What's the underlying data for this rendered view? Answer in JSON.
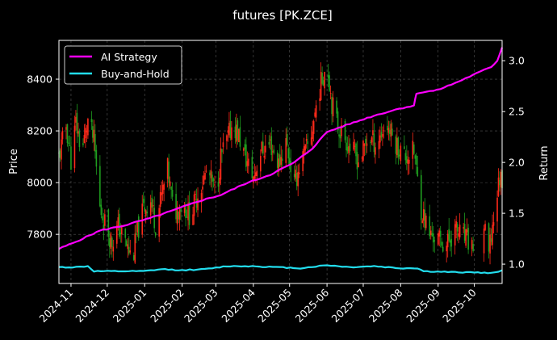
{
  "chart_data": {
    "type": "line",
    "title": "futures [PK.ZCE]",
    "xlabel": "",
    "ylabel_left": "Price",
    "ylabel_right": "Return",
    "x_start": "2024-10-22",
    "x_end": "2025-10-24",
    "x_ticks": [
      "2024-11",
      "2024-12",
      "2025-01",
      "2025-02",
      "2025-03",
      "2025-04",
      "2025-05",
      "2025-06",
      "2025-07",
      "2025-08",
      "2025-09",
      "2025-10"
    ],
    "ylim_left": [
      7610,
      8550
    ],
    "yticks_left": [
      7800,
      8000,
      8200,
      8400
    ],
    "ylim_right": [
      0.81,
      3.2
    ],
    "yticks_right": [
      "1.0",
      "1.5",
      "2.0",
      "2.5",
      "3.0"
    ],
    "grid": true,
    "legend_position": "top-left",
    "colors": {
      "background": "#000000",
      "up_candle": "#ff2a1a",
      "down_candle": "#1f9e1f",
      "ai_strategy": "#ff00ff",
      "buy_hold": "#22ddee",
      "grid": "#555555"
    },
    "price_series": {
      "name": "",
      "points": [
        [
          "2024-10-22",
          8100
        ],
        [
          "2024-10-28",
          8220
        ],
        [
          "2024-11-01",
          8090
        ],
        [
          "2024-11-05",
          8230
        ],
        [
          "2024-11-10",
          8120
        ],
        [
          "2024-11-15",
          8240
        ],
        [
          "2024-11-20",
          8160
        ],
        [
          "2024-11-25",
          7900
        ],
        [
          "2024-12-01",
          7820
        ],
        [
          "2024-12-05",
          7770
        ],
        [
          "2024-12-10",
          7830
        ],
        [
          "2024-12-15",
          7780
        ],
        [
          "2024-12-22",
          7700
        ],
        [
          "2024-12-25",
          7790
        ],
        [
          "2024-12-31",
          7900
        ],
        [
          "2025-01-06",
          7930
        ],
        [
          "2025-01-10",
          7840
        ],
        [
          "2025-01-15",
          7950
        ],
        [
          "2025-01-20",
          8050
        ],
        [
          "2025-01-25",
          7880
        ],
        [
          "2025-02-01",
          7920
        ],
        [
          "2025-02-08",
          7870
        ],
        [
          "2025-02-15",
          7970
        ],
        [
          "2025-02-22",
          8050
        ],
        [
          "2025-03-01",
          7950
        ],
        [
          "2025-03-05",
          8100
        ],
        [
          "2025-03-10",
          8160
        ],
        [
          "2025-03-15",
          8230
        ],
        [
          "2025-03-20",
          8180
        ],
        [
          "2025-03-25",
          8100
        ],
        [
          "2025-04-01",
          8020
        ],
        [
          "2025-04-07",
          8120
        ],
        [
          "2025-04-15",
          8150
        ],
        [
          "2025-04-22",
          8070
        ],
        [
          "2025-04-28",
          8160
        ],
        [
          "2025-05-05",
          7990
        ],
        [
          "2025-05-10",
          8080
        ],
        [
          "2025-05-18",
          8160
        ],
        [
          "2025-05-25",
          8350
        ],
        [
          "2025-06-01",
          8470
        ],
        [
          "2025-06-05",
          8310
        ],
        [
          "2025-06-10",
          8220
        ],
        [
          "2025-06-15",
          8180
        ],
        [
          "2025-06-22",
          8120
        ],
        [
          "2025-06-28",
          8080
        ],
        [
          "2025-07-05",
          8180
        ],
        [
          "2025-07-12",
          8150
        ],
        [
          "2025-07-20",
          8230
        ],
        [
          "2025-07-28",
          8150
        ],
        [
          "2025-08-05",
          8100
        ],
        [
          "2025-08-12",
          8120
        ],
        [
          "2025-08-18",
          7900
        ],
        [
          "2025-08-25",
          7800
        ],
        [
          "2025-09-01",
          7780
        ],
        [
          "2025-09-08",
          7760
        ],
        [
          "2025-09-15",
          7820
        ],
        [
          "2025-09-22",
          7790
        ],
        [
          "2025-09-30",
          7750
        ],
        [
          "2025-10-08",
          7850
        ],
        [
          "2025-10-13",
          7720
        ],
        [
          "2025-10-18",
          7900
        ],
        [
          "2025-10-22",
          8020
        ]
      ]
    },
    "series": [
      {
        "name": "AI Strategy",
        "axis": "right",
        "points": [
          [
            "2024-10-22",
            1.15
          ],
          [
            "2024-11-05",
            1.22
          ],
          [
            "2024-11-25",
            1.33
          ],
          [
            "2024-12-15",
            1.38
          ],
          [
            "2025-01-05",
            1.45
          ],
          [
            "2025-01-25",
            1.53
          ],
          [
            "2025-02-15",
            1.62
          ],
          [
            "2025-03-05",
            1.68
          ],
          [
            "2025-03-25",
            1.79
          ],
          [
            "2025-04-15",
            1.88
          ],
          [
            "2025-05-05",
            2.0
          ],
          [
            "2025-05-20",
            2.14
          ],
          [
            "2025-06-01",
            2.3
          ],
          [
            "2025-06-20",
            2.38
          ],
          [
            "2025-07-10",
            2.46
          ],
          [
            "2025-07-31",
            2.53
          ],
          [
            "2025-08-12",
            2.56
          ],
          [
            "2025-08-14",
            2.68
          ],
          [
            "2025-08-31",
            2.71
          ],
          [
            "2025-09-15",
            2.78
          ],
          [
            "2025-09-30",
            2.86
          ],
          [
            "2025-10-15",
            2.94
          ],
          [
            "2025-10-20",
            3.0
          ],
          [
            "2025-10-24",
            3.13
          ]
        ]
      },
      {
        "name": "Buy-and-Hold",
        "axis": "right",
        "points": [
          [
            "2024-10-22",
            0.97
          ],
          [
            "2024-11-05",
            0.97
          ],
          [
            "2024-11-15",
            0.98
          ],
          [
            "2024-11-20",
            0.93
          ],
          [
            "2024-12-10",
            0.93
          ],
          [
            "2024-12-31",
            0.93
          ],
          [
            "2025-01-15",
            0.95
          ],
          [
            "2025-02-01",
            0.94
          ],
          [
            "2025-02-20",
            0.95
          ],
          [
            "2025-03-10",
            0.98
          ],
          [
            "2025-03-31",
            0.98
          ],
          [
            "2025-04-20",
            0.97
          ],
          [
            "2025-05-10",
            0.96
          ],
          [
            "2025-06-01",
            0.99
          ],
          [
            "2025-06-20",
            0.97
          ],
          [
            "2025-07-10",
            0.98
          ],
          [
            "2025-07-31",
            0.96
          ],
          [
            "2025-08-15",
            0.96
          ],
          [
            "2025-08-20",
            0.93
          ],
          [
            "2025-09-15",
            0.92
          ],
          [
            "2025-10-01",
            0.92
          ],
          [
            "2025-10-15",
            0.91
          ],
          [
            "2025-10-24",
            0.94
          ]
        ]
      }
    ]
  }
}
